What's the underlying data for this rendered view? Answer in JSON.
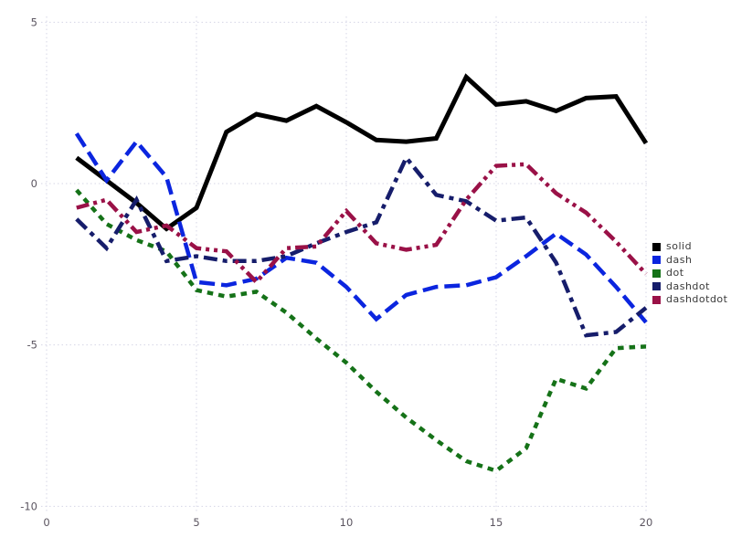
{
  "chart_data": {
    "type": "line",
    "title": "",
    "xlabel": "",
    "ylabel": "",
    "xlim": [
      0,
      20
    ],
    "ylim": [
      -10,
      5
    ],
    "xticks": [
      0,
      5,
      10,
      15,
      20
    ],
    "yticks": [
      5,
      0,
      -5,
      -10
    ],
    "grid": "dotted",
    "legend_position": "right",
    "x": [
      1,
      2,
      3,
      4,
      5,
      6,
      7,
      8,
      9,
      10,
      11,
      12,
      13,
      14,
      15,
      16,
      17,
      18,
      19,
      20
    ],
    "series": [
      {
        "name": "solid",
        "line_style": "solid",
        "color": "#000000",
        "width": 5,
        "values": [
          0.8,
          0.1,
          -0.6,
          -1.4,
          -0.75,
          1.6,
          2.15,
          1.95,
          2.4,
          1.9,
          1.35,
          1.3,
          1.4,
          3.3,
          2.45,
          2.55,
          2.25,
          2.65,
          2.7,
          1.25
        ]
      },
      {
        "name": "dash",
        "line_style": "dash",
        "color": "#0b25df",
        "width": 4.5,
        "values": [
          1.55,
          0.1,
          1.3,
          0.2,
          -3.05,
          -3.15,
          -2.95,
          -2.3,
          -2.45,
          -3.2,
          -4.2,
          -3.45,
          -3.2,
          -3.15,
          -2.9,
          -2.25,
          -1.55,
          -2.2,
          -3.2,
          -4.3
        ]
      },
      {
        "name": "dot",
        "line_style": "dot",
        "color": "#157218",
        "width": 4.5,
        "values": [
          -0.2,
          -1.25,
          -1.75,
          -2.1,
          -3.3,
          -3.5,
          -3.35,
          -4.0,
          -4.8,
          -5.55,
          -6.45,
          -7.25,
          -7.95,
          -8.6,
          -8.9,
          -8.2,
          -6.05,
          -6.35,
          -5.1,
          -5.05
        ]
      },
      {
        "name": "dashdot",
        "line_style": "dashdot",
        "color": "#161d6b",
        "width": 4.5,
        "values": [
          -1.1,
          -2.0,
          -0.5,
          -2.4,
          -2.25,
          -2.4,
          -2.4,
          -2.25,
          -1.85,
          -1.5,
          -1.2,
          0.8,
          -0.35,
          -0.55,
          -1.15,
          -1.05,
          -2.45,
          -4.7,
          -4.6,
          -3.85
        ]
      },
      {
        "name": "dashdotdot",
        "line_style": "dashdotdot",
        "color": "#9a1147",
        "width": 4.5,
        "values": [
          -0.75,
          -0.5,
          -1.5,
          -1.3,
          -2.0,
          -2.1,
          -3.05,
          -2.0,
          -1.95,
          -0.85,
          -1.85,
          -2.05,
          -1.9,
          -0.5,
          0.55,
          0.6,
          -0.3,
          -0.9,
          -1.8,
          -2.8
        ]
      }
    ],
    "legend_items": [
      "solid",
      "dash",
      "dot",
      "dashdot",
      "dashdotdot"
    ]
  },
  "colors": {
    "background": "#ffffff",
    "grid": "#d6d6e6",
    "tick_label": "#5b5560",
    "legend_text": "#3a3a3a"
  }
}
